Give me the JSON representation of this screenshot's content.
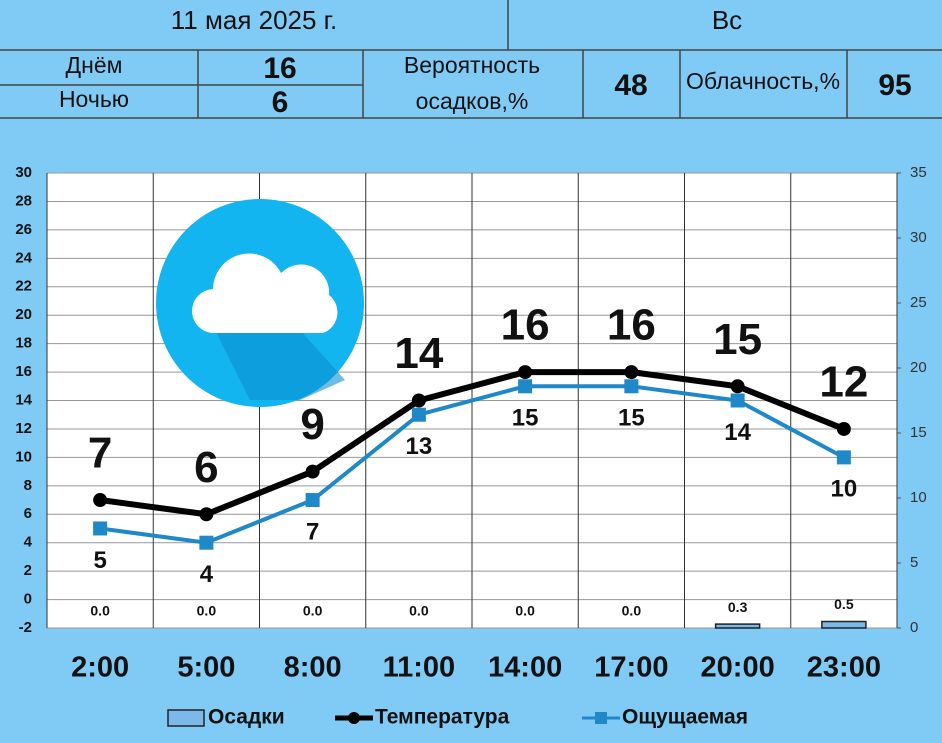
{
  "header": {
    "date": "11 мая 2025 г.",
    "weekday": "Вс",
    "day_label": "Днём",
    "day_value": 16,
    "night_label": "Ночью",
    "night_value": 6,
    "precip_prob_label": [
      "Вероятность",
      "осадков,%"
    ],
    "precip_prob": 48,
    "cloud_label": "Облачность,%",
    "cloud": 95
  },
  "chart_data": {
    "type": "line",
    "categories": [
      "2:00",
      "5:00",
      "8:00",
      "11:00",
      "14:00",
      "17:00",
      "20:00",
      "23:00"
    ],
    "series": [
      {
        "name": "Осадки",
        "type": "bar",
        "axis": "y2",
        "color": "#7db8ea",
        "values": [
          0,
          0,
          0,
          0,
          0,
          0,
          0.3,
          0.5
        ],
        "value_labels": [
          "0.0",
          "0.0",
          "0.0",
          "0.0",
          "0.0",
          "0.0",
          "0.3",
          "0.5"
        ]
      },
      {
        "name": "Температура",
        "color": "#000000",
        "values": [
          7,
          6,
          9,
          14,
          16,
          16,
          15,
          12
        ]
      },
      {
        "name": "Ощущаемая",
        "color": "#1e88c8",
        "values": [
          5,
          4,
          7,
          13,
          15,
          15,
          14,
          10
        ]
      }
    ],
    "ylim": [
      -2,
      30
    ],
    "yticks": [
      -2,
      0,
      2,
      4,
      6,
      8,
      10,
      12,
      14,
      16,
      18,
      20,
      22,
      24,
      26,
      28,
      30
    ],
    "y2lim": [
      0,
      35
    ],
    "y2ticks": [
      0,
      5,
      10,
      15,
      20,
      25,
      30,
      35
    ],
    "grid": true
  }
}
